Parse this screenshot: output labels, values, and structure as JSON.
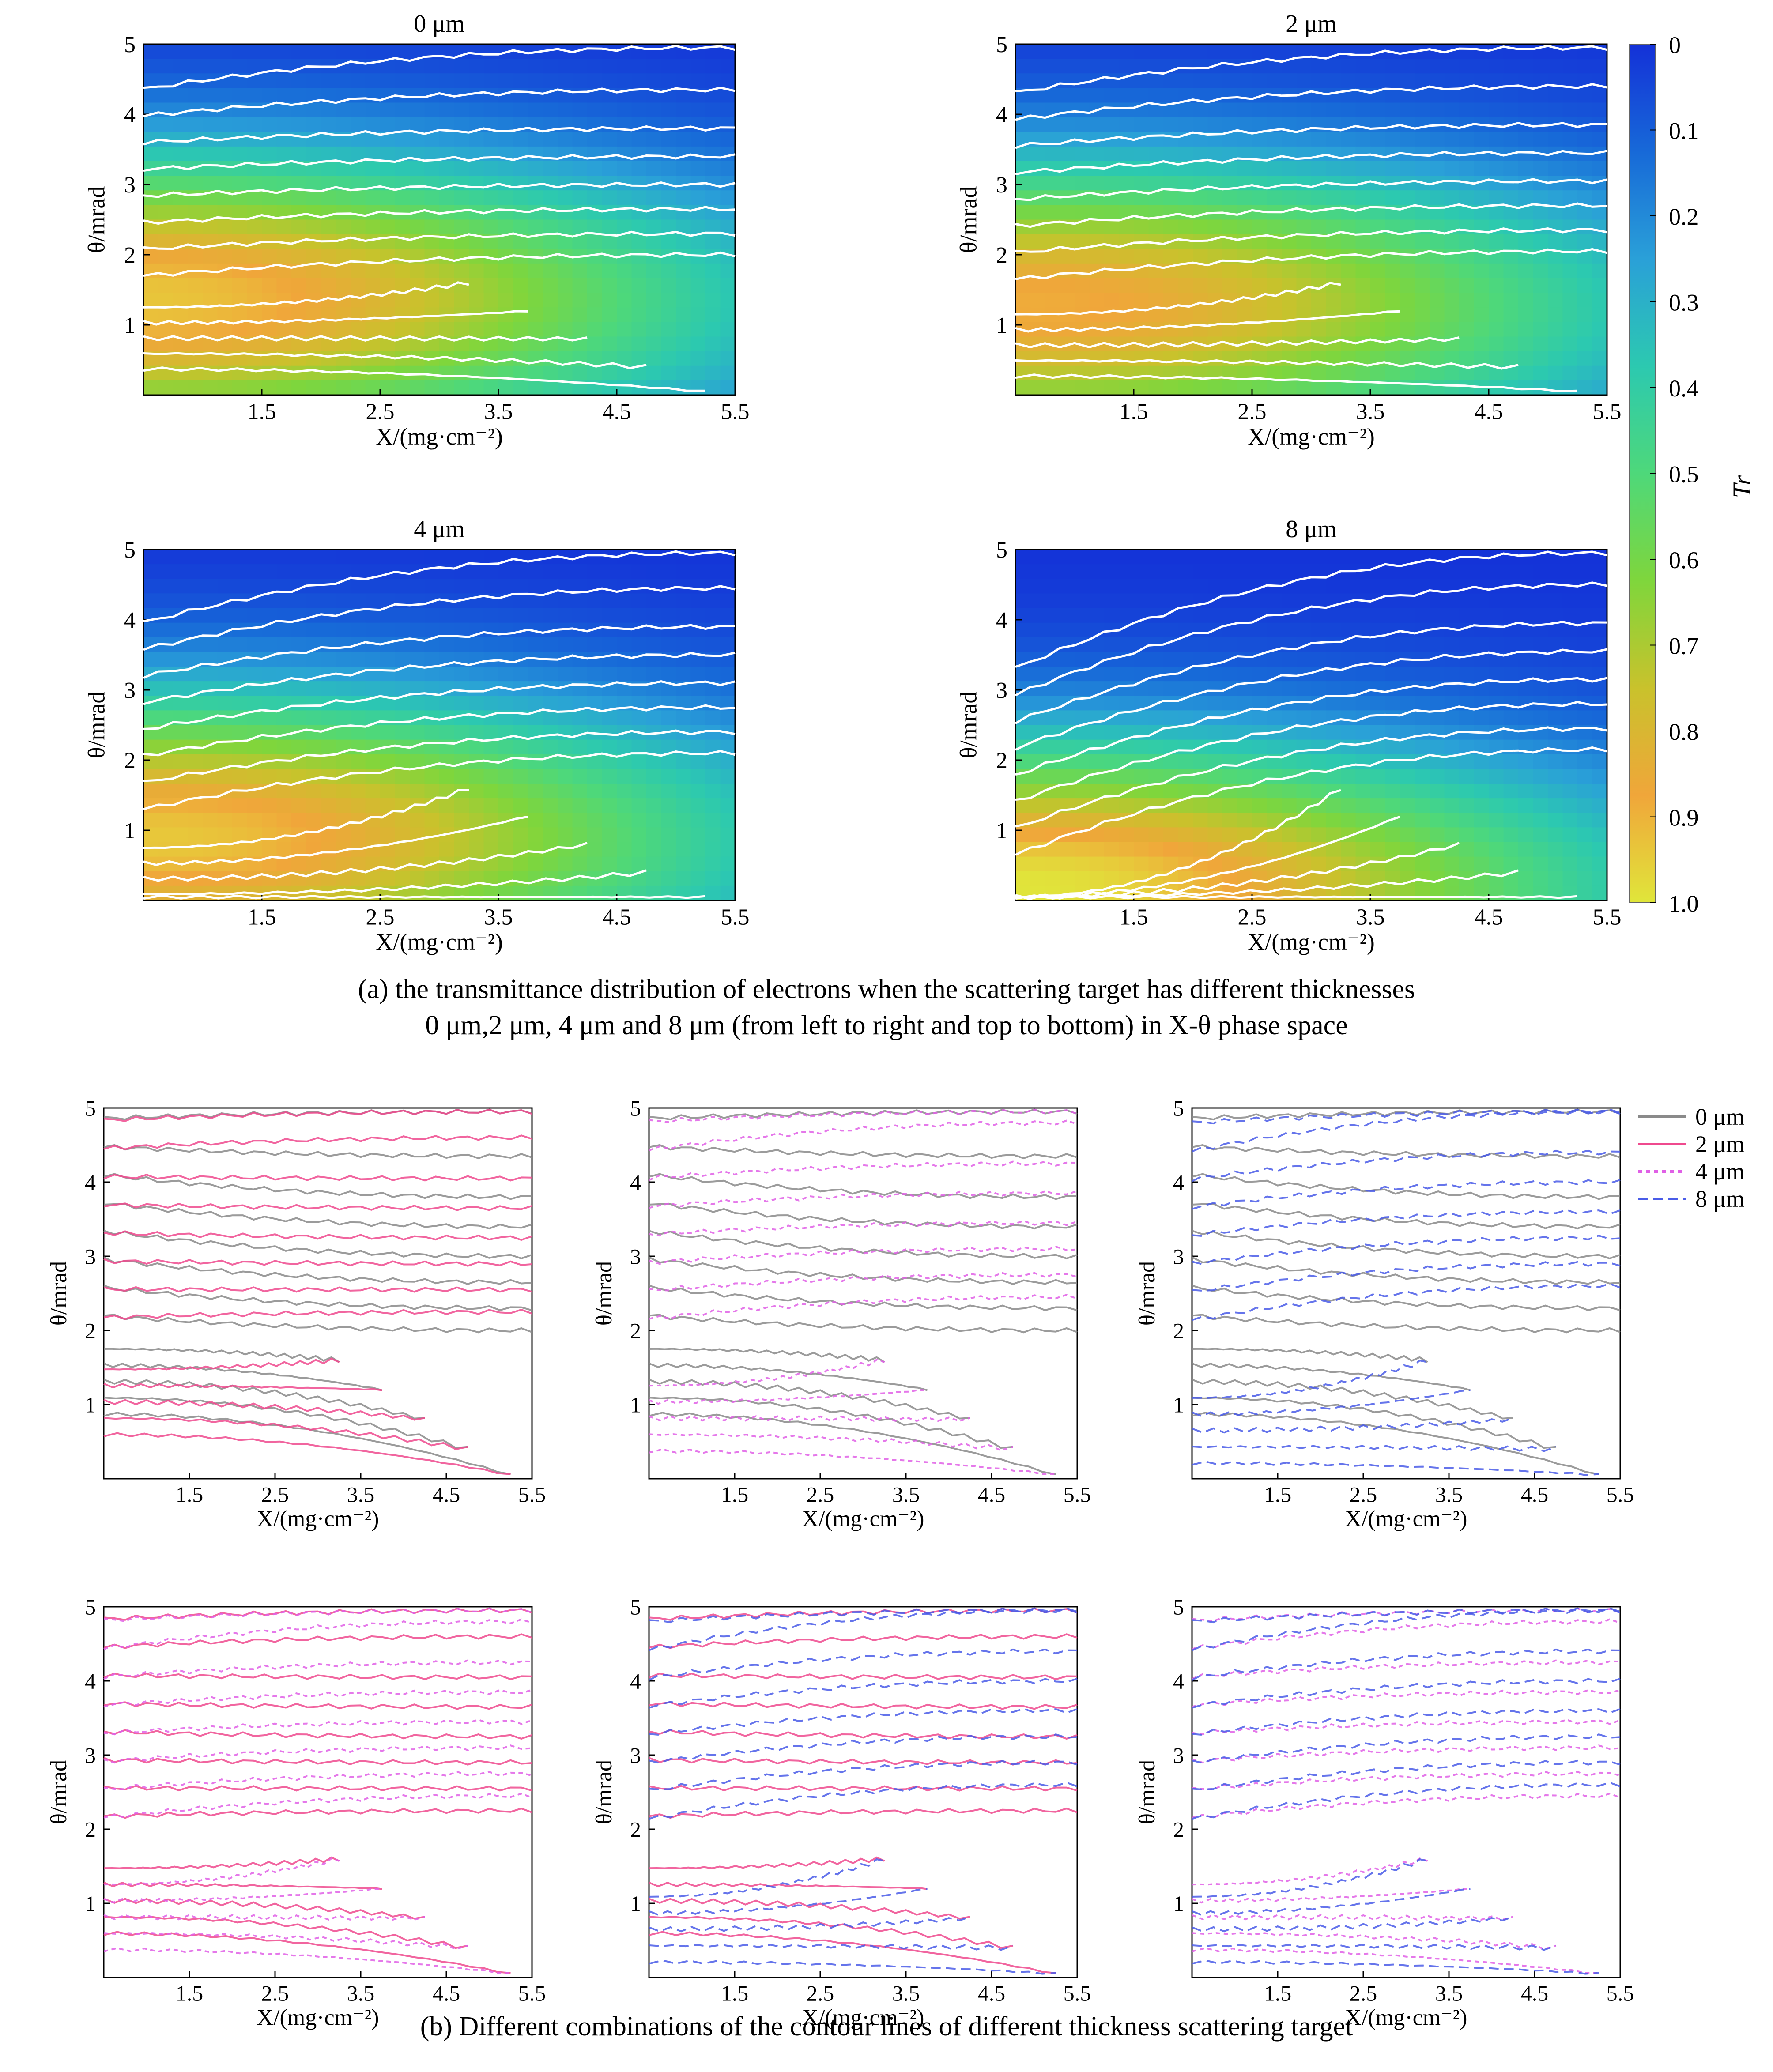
{
  "figure": {
    "caption_a_line1": "(a) the transmittance distribution of electrons when the scattering target has different thicknesses",
    "caption_a_line2": "0 μm,2 μm, 4 μm and 8 μm (from left to right and top to bottom) in X-θ phase space",
    "caption_b": "(b) Different combinations of the contour lines of different thickness scattering target",
    "x_axis_title": "X/(mg·cm⁻²)",
    "y_axis_title": "θ/mrad"
  },
  "colorbar": {
    "label": "Tr",
    "ticks": [
      "0",
      "0.1",
      "0.2",
      "0.3",
      "0.4",
      "0.5",
      "0.6",
      "0.7",
      "0.8",
      "0.9",
      "1.0"
    ],
    "colors": [
      "#1431d8",
      "#1769d8",
      "#2aa0d8",
      "#2cc9b0",
      "#4ed87a",
      "#7fd63c",
      "#c9c22c",
      "#f0a63a",
      "#e0e63a"
    ]
  },
  "legend": [
    "0 μm",
    "2 μm",
    "4 μm",
    "8 μm"
  ],
  "series_colors": {
    "0 μm": "#8a8a8a",
    "2 μm": "#ef4a8e",
    "4 μm": "#e060e6",
    "8 μm": "#4a5ce8"
  },
  "chart_data": [
    {
      "type": "heatmap",
      "title": "0 μm",
      "xlabel": "X/(mg·cm⁻²)",
      "ylabel": "θ/mrad",
      "xlim": [
        0.5,
        5.5
      ],
      "ylim": [
        0,
        5
      ],
      "xticks": [
        "1.5",
        "2.5",
        "3.5",
        "4.5",
        "5.5"
      ],
      "yticks": [
        "1",
        "2",
        "3",
        "4",
        "5"
      ],
      "peak": {
        "x": 0.5,
        "y": 1.4,
        "value": 0.9
      }
    },
    {
      "type": "heatmap",
      "title": "2 μm",
      "xlabel": "X/(mg·cm⁻²)",
      "ylabel": "θ/mrad",
      "xlim": [
        0.5,
        5.5
      ],
      "ylim": [
        0,
        5
      ],
      "xticks": [
        "1.5",
        "2.5",
        "3.5",
        "4.5",
        "5.5"
      ],
      "yticks": [
        "1",
        "2",
        "3",
        "4",
        "5"
      ],
      "peak": {
        "x": 0.7,
        "y": 1.3,
        "value": 0.85
      }
    },
    {
      "type": "heatmap",
      "title": "4 μm",
      "xlabel": "X/(mg·cm⁻²)",
      "ylabel": "θ/mrad",
      "xlim": [
        0.5,
        5.5
      ],
      "ylim": [
        0,
        5
      ],
      "xticks": [
        "1.5",
        "2.5",
        "3.5",
        "4.5",
        "5.5"
      ],
      "yticks": [
        "1",
        "2",
        "3",
        "4",
        "5"
      ],
      "peak": {
        "x": 0.6,
        "y": 0.9,
        "value": 0.9
      }
    },
    {
      "type": "heatmap",
      "title": "8 μm",
      "xlabel": "X/(mg·cm⁻²)",
      "ylabel": "θ/mrad",
      "xlim": [
        0.5,
        5.5
      ],
      "ylim": [
        0,
        5
      ],
      "xticks": [
        "1.5",
        "2.5",
        "3.5",
        "4.5",
        "5.5"
      ],
      "yticks": [
        "1",
        "2",
        "3",
        "4",
        "5"
      ],
      "peak": {
        "x": 0.5,
        "y": 0.2,
        "value": 0.95
      }
    },
    {
      "type": "line",
      "series": [
        {
          "name": "0 μm"
        },
        {
          "name": "2 μm"
        }
      ],
      "xlim": [
        0.5,
        5.5
      ],
      "ylim": [
        0,
        5
      ],
      "xticks": [
        "1.5",
        "2.5",
        "3.5",
        "4.5",
        "5.5"
      ],
      "yticks": [
        "1",
        "2",
        "3",
        "4",
        "5"
      ]
    },
    {
      "type": "line",
      "series": [
        {
          "name": "0 μm"
        },
        {
          "name": "4 μm"
        }
      ],
      "xlim": [
        0.5,
        5.5
      ],
      "ylim": [
        0,
        5
      ],
      "xticks": [
        "1.5",
        "2.5",
        "3.5",
        "4.5",
        "5.5"
      ],
      "yticks": [
        "1",
        "2",
        "3",
        "4",
        "5"
      ]
    },
    {
      "type": "line",
      "series": [
        {
          "name": "0 μm"
        },
        {
          "name": "8 μm"
        }
      ],
      "xlim": [
        0.5,
        5.5
      ],
      "ylim": [
        0,
        5
      ],
      "xticks": [
        "1.5",
        "2.5",
        "3.5",
        "4.5",
        "5.5"
      ],
      "yticks": [
        "1",
        "2",
        "3",
        "4",
        "5"
      ]
    },
    {
      "type": "line",
      "series": [
        {
          "name": "2 μm"
        },
        {
          "name": "4 μm"
        }
      ],
      "xlim": [
        0.5,
        5.5
      ],
      "ylim": [
        0,
        5
      ],
      "xticks": [
        "1.5",
        "2.5",
        "3.5",
        "4.5",
        "5.5"
      ],
      "yticks": [
        "1",
        "2",
        "3",
        "4",
        "5"
      ]
    },
    {
      "type": "line",
      "series": [
        {
          "name": "2 μm"
        },
        {
          "name": "8 μm"
        }
      ],
      "xlim": [
        0.5,
        5.5
      ],
      "ylim": [
        0,
        5
      ],
      "xticks": [
        "1.5",
        "2.5",
        "3.5",
        "4.5",
        "5.5"
      ],
      "yticks": [
        "1",
        "2",
        "3",
        "4",
        "5"
      ]
    },
    {
      "type": "line",
      "series": [
        {
          "name": "4 μm"
        },
        {
          "name": "8 μm"
        }
      ],
      "xlim": [
        0.5,
        5.5
      ],
      "ylim": [
        0,
        5
      ],
      "xticks": [
        "1.5",
        "2.5",
        "3.5",
        "4.5",
        "5.5"
      ],
      "yticks": [
        "1",
        "2",
        "3",
        "4",
        "5"
      ]
    }
  ]
}
